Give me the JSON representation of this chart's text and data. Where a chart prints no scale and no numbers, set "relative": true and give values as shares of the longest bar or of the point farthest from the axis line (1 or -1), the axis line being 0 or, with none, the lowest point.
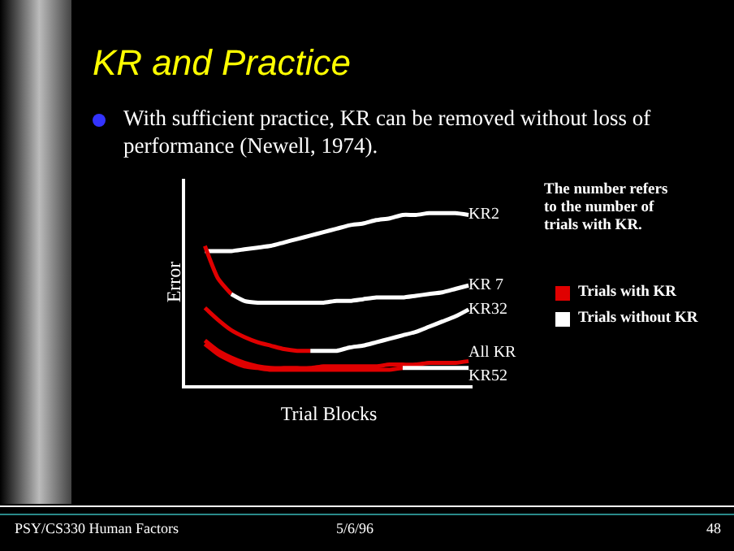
{
  "chart_data": {
    "type": "line",
    "relative": true,
    "title": "KR and Practice",
    "subtitle": "With sufficient practice, KR can be removed without loss of performance (Newell, 1974).",
    "xlabel": "Trial Blocks",
    "ylabel": "Error",
    "categories": [
      null,
      null,
      null,
      null,
      null,
      null,
      null,
      null,
      null,
      null,
      null,
      null,
      null,
      null,
      null,
      null,
      null,
      null,
      null,
      null,
      null
    ],
    "series": [
      {
        "name": "KR2",
        "color": "#ffffff",
        "values": [
          0.78,
          0.78,
          0.78,
          0.79,
          0.8,
          0.81,
          0.83,
          0.85,
          0.87,
          0.89,
          0.91,
          0.93,
          0.94,
          0.96,
          0.97,
          0.99,
          0.99,
          1,
          1,
          1,
          0.99
        ]
      },
      {
        "color": "#e00000",
        "values": [
          0.81,
          0.62,
          0.53,
          null,
          null,
          null,
          null,
          null,
          null,
          null,
          null,
          null,
          null,
          null,
          null,
          null,
          null,
          null,
          null,
          null,
          null
        ]
      },
      {
        "name": "KR 7",
        "color": "#ffffff",
        "values": [
          null,
          null,
          0.53,
          0.49,
          0.48,
          0.48,
          0.48,
          0.48,
          0.48,
          0.48,
          0.49,
          0.49,
          0.5,
          0.51,
          0.51,
          0.51,
          0.52,
          0.53,
          0.54,
          0.56,
          0.58
        ]
      },
      {
        "color": "#e00000",
        "values": [
          0.45,
          0.38,
          0.32,
          0.28,
          0.25,
          0.23,
          0.21,
          0.2,
          0.2,
          null,
          null,
          null,
          null,
          null,
          null,
          null,
          null,
          null,
          null,
          null,
          null
        ]
      },
      {
        "name": "KR32",
        "color": "#ffffff",
        "values": [
          null,
          null,
          null,
          null,
          null,
          null,
          null,
          null,
          0.2,
          0.2,
          0.2,
          0.22,
          0.23,
          0.25,
          0.27,
          0.29,
          0.31,
          0.34,
          0.37,
          0.4,
          0.44
        ]
      },
      {
        "name": "All KR",
        "color": "#e00000",
        "values": [
          0.26,
          0.2,
          0.16,
          0.13,
          0.11,
          0.1,
          0.1,
          0.1,
          0.1,
          0.11,
          0.11,
          0.11,
          0.11,
          0.11,
          0.12,
          0.12,
          0.12,
          0.13,
          0.13,
          0.13,
          0.14
        ]
      },
      {
        "color": "#e00000",
        "values": [
          0.24,
          0.18,
          0.14,
          0.11,
          0.1,
          0.09,
          0.09,
          0.09,
          0.09,
          0.09,
          0.09,
          0.09,
          0.09,
          0.09,
          0.09,
          0.1,
          null,
          null,
          null,
          null,
          null
        ]
      },
      {
        "name": "KR52",
        "color": "#ffffff",
        "values": [
          null,
          null,
          null,
          null,
          null,
          null,
          null,
          null,
          null,
          null,
          null,
          null,
          null,
          null,
          null,
          0.1,
          0.1,
          0.1,
          0.1,
          0.1,
          0.1
        ]
      }
    ],
    "annotations": [
      "The number refers to the number of trials with KR.",
      "Trials with KR",
      "Trials without KR",
      "PSY/CS330 Human Factors",
      "5/6/96",
      "48"
    ]
  }
}
